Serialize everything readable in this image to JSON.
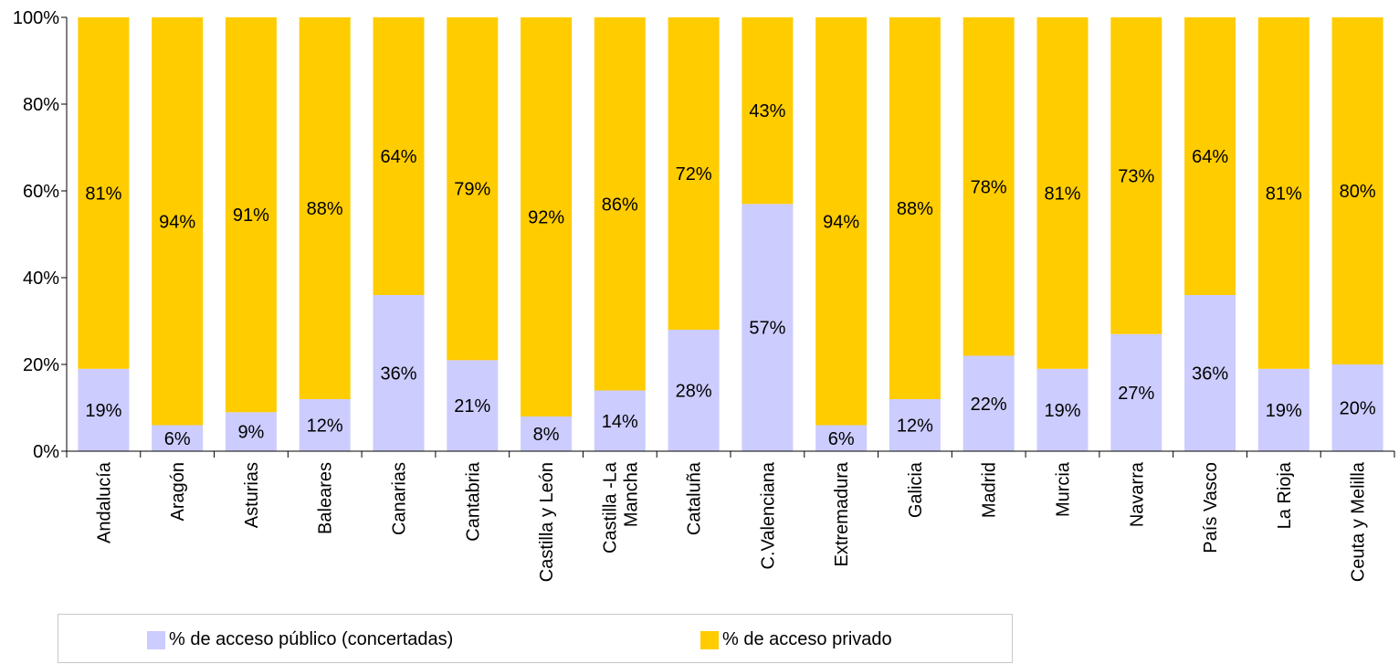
{
  "chart_data": {
    "type": "bar",
    "stacked": true,
    "normalized": true,
    "categories": [
      "Andalucía",
      "Aragón",
      "Asturias",
      "Baleares",
      "Canarias",
      "Cantabria",
      "Castilla y León",
      "Castilla -La Mancha",
      "Cataluña",
      "C.Valenciana",
      "Extremadura",
      "Galicia",
      "Madrid",
      "Murcia",
      "Navarra",
      "País Vasco",
      "La Rioja",
      "Ceuta y Melilla"
    ],
    "series": [
      {
        "name": "% de acceso público (concertadas)",
        "color": "#ccccff",
        "values": [
          19,
          6,
          9,
          12,
          36,
          21,
          8,
          14,
          28,
          57,
          6,
          12,
          22,
          19,
          27,
          36,
          19,
          20
        ],
        "labels": [
          "19%",
          "6%",
          "9%",
          "12%",
          "36%",
          "21%",
          "8%",
          "14%",
          "28%",
          "57%",
          "6%",
          "12%",
          "22%",
          "19%",
          "27%",
          "36%",
          "19%",
          "20%"
        ]
      },
      {
        "name": "% de acceso privado",
        "color": "#ffcc00",
        "values": [
          81,
          94,
          91,
          88,
          64,
          79,
          92,
          86,
          72,
          43,
          94,
          88,
          78,
          81,
          73,
          64,
          81,
          80
        ],
        "labels": [
          "81%",
          "94%",
          "91%",
          "88%",
          "64%",
          "79%",
          "92%",
          "86%",
          "72%",
          "43%",
          "94%",
          "88%",
          "78%",
          "81%",
          "73%",
          "64%",
          "81%",
          "80%"
        ]
      }
    ],
    "y_ticks": [
      "0%",
      "20%",
      "40%",
      "60%",
      "80%",
      "100%"
    ],
    "ylim": [
      0,
      100
    ],
    "grid": false,
    "legend_position": "bottom"
  }
}
